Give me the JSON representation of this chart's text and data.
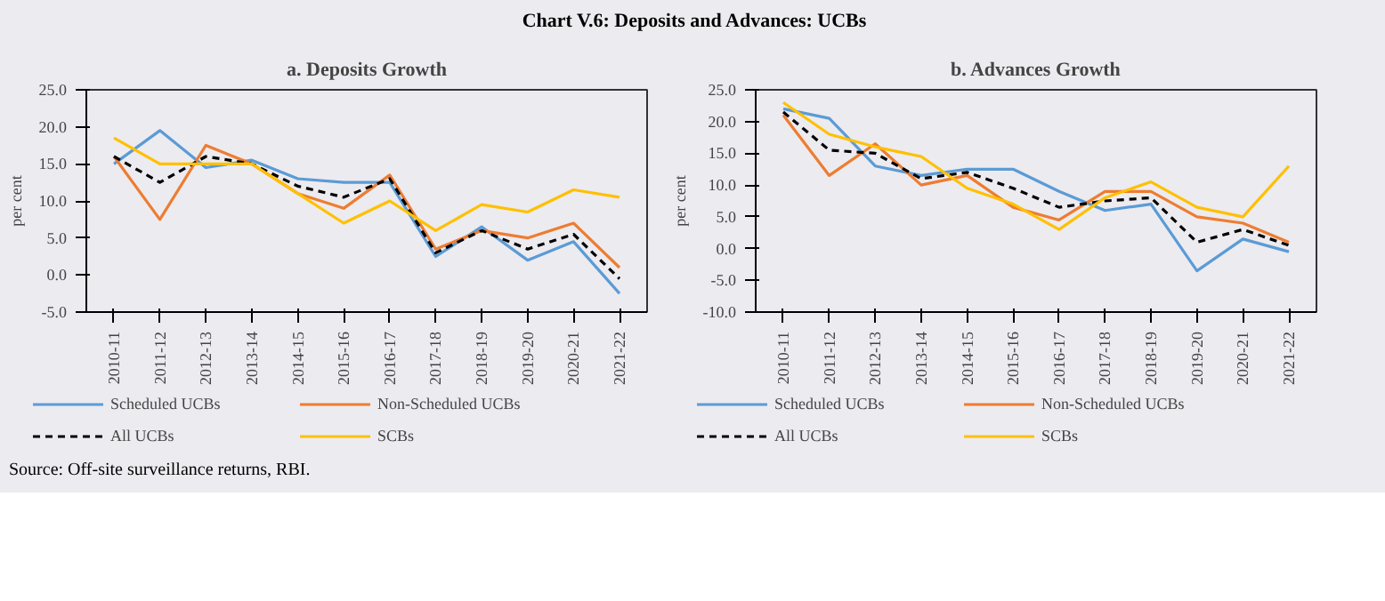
{
  "chart_data": [
    {
      "type": "line",
      "title": "a. Deposits Growth",
      "ylabel": "per cent",
      "annotations": [
        "Chart V.6: Deposits and Advances: UCBs"
      ],
      "categories": [
        "2010-11",
        "2011-12",
        "2012-13",
        "2013-14",
        "2014-15",
        "2015-16",
        "2016-17",
        "2017-18",
        "2018-19",
        "2019-20",
        "2020-21",
        "2021-22"
      ],
      "series": [
        {
          "name": "Scheduled UCBs",
          "color": "#5b9bd5",
          "values": [
            15,
            19.5,
            14.5,
            15.5,
            13,
            12.5,
            12.5,
            2.5,
            6.5,
            2,
            4.5,
            -2.5
          ]
        },
        {
          "name": "Non-Scheduled UCBs",
          "color": "#ed7d31",
          "values": [
            16,
            7.5,
            17.5,
            15,
            11,
            9,
            13.5,
            3.5,
            6,
            5,
            7,
            1
          ]
        },
        {
          "name": "All UCBs",
          "color": "#000000",
          "line_style": "dashed",
          "values": [
            16,
            12.5,
            16,
            15,
            12,
            10.5,
            13,
            3,
            6,
            3.5,
            5.5,
            -0.5
          ]
        },
        {
          "name": "SCBs",
          "color": "#ffc000",
          "values": [
            18.5,
            15,
            15,
            15,
            11,
            7,
            10,
            6,
            9.5,
            8.5,
            11.5,
            10.5
          ]
        }
      ],
      "ylim": [
        -5,
        25
      ],
      "yticks": [
        {
          "value": -5,
          "label": "-5.0"
        },
        {
          "value": 0,
          "label": "0.0"
        },
        {
          "value": 5,
          "label": "5.0"
        },
        {
          "value": 10,
          "label": "10.0"
        },
        {
          "value": 15,
          "label": "15.0"
        },
        {
          "value": 20,
          "label": "20.0"
        },
        {
          "value": 25,
          "label": "25.0"
        }
      ],
      "grid": false,
      "legend": "bottom",
      "line_style": "solid",
      "marker": "none"
    },
    {
      "type": "line",
      "title": "b. Advances Growth",
      "ylabel": "per cent",
      "annotations": [
        "Source: Off-site surveillance returns, RBI."
      ],
      "categories": [
        "2010-11",
        "2011-12",
        "2012-13",
        "2013-14",
        "2014-15",
        "2015-16",
        "2016-17",
        "2017-18",
        "2018-19",
        "2019-20",
        "2020-21",
        "2021-22"
      ],
      "series": [
        {
          "name": "Scheduled UCBs",
          "color": "#5b9bd5",
          "values": [
            22,
            20.5,
            13,
            11.5,
            12.5,
            12.5,
            9,
            6,
            7,
            -3.5,
            1.5,
            -0.5
          ]
        },
        {
          "name": "Non-Scheduled UCBs",
          "color": "#ed7d31",
          "values": [
            21,
            11.5,
            16.5,
            10,
            11.5,
            6.5,
            4.5,
            9,
            9,
            5,
            4,
            1
          ]
        },
        {
          "name": "All UCBs",
          "color": "#000000",
          "line_style": "dashed",
          "values": [
            21.5,
            15.5,
            15,
            11,
            12,
            9.5,
            6.5,
            7.5,
            8,
            1,
            3,
            0.5
          ]
        },
        {
          "name": "SCBs",
          "color": "#ffc000",
          "values": [
            23,
            18,
            16,
            14.5,
            9.5,
            7,
            3,
            8,
            10.5,
            6.5,
            5,
            13
          ]
        }
      ],
      "ylim": [
        -10,
        25
      ],
      "yticks": [
        {
          "value": -10,
          "label": "-10.0"
        },
        {
          "value": -5,
          "label": "-5.0"
        },
        {
          "value": 0,
          "label": "0.0"
        },
        {
          "value": 5,
          "label": "5.0"
        },
        {
          "value": 10,
          "label": "10.0"
        },
        {
          "value": 15,
          "label": "15.0"
        },
        {
          "value": 20,
          "label": "20.0"
        },
        {
          "value": 25,
          "label": "25.0"
        }
      ],
      "grid": false,
      "legend": "bottom",
      "line_style": "solid",
      "marker": "none"
    }
  ]
}
